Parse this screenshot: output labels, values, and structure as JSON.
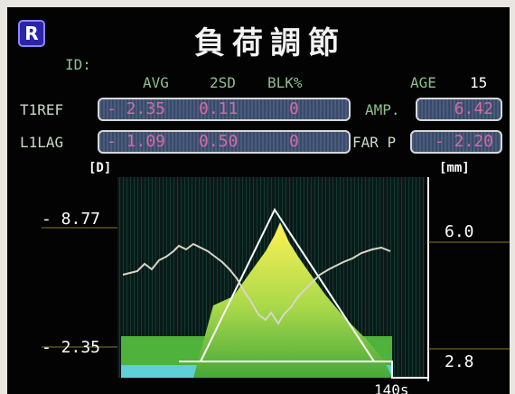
{
  "badge": "R",
  "title": "負荷調節",
  "id_label": "ID:",
  "headers": {
    "avg": "AVG",
    "sd": "2SD",
    "blk": "BLK%",
    "age_label": "AGE",
    "age_value": "15"
  },
  "rows": [
    {
      "label": "T1REF",
      "avg": "- 2.35",
      "sd": "0.11",
      "blk": "0",
      "right_label": "AMP.",
      "right_value": "6.42"
    },
    {
      "label": "L1LAG",
      "avg": "- 1.09",
      "sd": "0.50",
      "blk": "0",
      "right_label": "FAR P",
      "right_value": "- 2.20"
    }
  ],
  "units": {
    "left": "[D]",
    "right": "[mm]"
  },
  "left_axis": {
    "top": "- 8.77",
    "bottom": "- 2.35"
  },
  "right_axis": {
    "top": "6.0",
    "bottom": "2.8"
  },
  "x_label": "140s",
  "colors": {
    "green": "#59b83a",
    "yellow": "#f0e84a",
    "cyan": "#5fd0d8",
    "frame": "#ffffff"
  }
}
